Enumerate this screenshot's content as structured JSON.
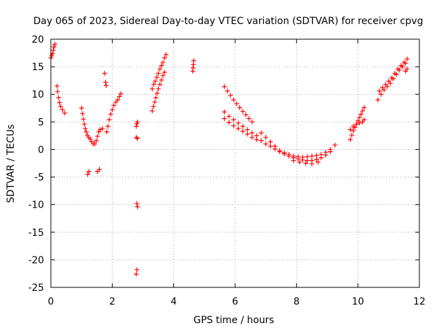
{
  "chart_data": {
    "type": "scatter",
    "title": "Day 065 of 2023, Sidereal Day-to-day VTEC variation (SDTVAR) for receiver cpvg",
    "xlabel": "GPS time / hours",
    "ylabel": "SDTVAR / TECUs",
    "xlim": [
      0,
      12
    ],
    "ylim": [
      -25,
      20
    ],
    "xticks": [
      0,
      2,
      4,
      6,
      8,
      10,
      12
    ],
    "yticks": [
      -25,
      -20,
      -15,
      -10,
      -5,
      0,
      5,
      10,
      15,
      20
    ],
    "grid": true,
    "marker": "+",
    "color": "#ff0000",
    "series": [
      {
        "name": "SDTVAR",
        "points": [
          [
            0.0,
            16.6
          ],
          [
            0.03,
            17.0
          ],
          [
            0.05,
            17.4
          ],
          [
            0.08,
            18.0
          ],
          [
            0.1,
            18.6
          ],
          [
            0.13,
            19.1
          ],
          [
            0.2,
            11.5
          ],
          [
            0.22,
            10.5
          ],
          [
            0.25,
            9.4
          ],
          [
            0.28,
            8.5
          ],
          [
            0.32,
            7.8
          ],
          [
            0.38,
            7.2
          ],
          [
            0.45,
            6.6
          ],
          [
            1.0,
            7.5
          ],
          [
            1.03,
            6.5
          ],
          [
            1.06,
            5.5
          ],
          [
            1.09,
            4.6
          ],
          [
            1.12,
            3.8
          ],
          [
            1.15,
            3.2
          ],
          [
            1.19,
            2.6
          ],
          [
            1.23,
            2.2
          ],
          [
            1.28,
            1.9
          ],
          [
            1.33,
            1.4
          ],
          [
            1.38,
            1.0
          ],
          [
            1.43,
            1.0
          ],
          [
            1.48,
            1.6
          ],
          [
            1.52,
            2.4
          ],
          [
            1.56,
            3.2
          ],
          [
            1.6,
            3.6
          ],
          [
            1.68,
            3.8
          ],
          [
            1.2,
            -4.5
          ],
          [
            1.24,
            -4.0
          ],
          [
            1.52,
            -4.0
          ],
          [
            1.58,
            -3.6
          ],
          [
            1.75,
            13.8
          ],
          [
            1.78,
            12.2
          ],
          [
            1.8,
            11.6
          ],
          [
            1.82,
            3.2
          ],
          [
            1.86,
            4.2
          ],
          [
            1.9,
            5.4
          ],
          [
            1.95,
            6.4
          ],
          [
            2.0,
            7.2
          ],
          [
            2.05,
            8.0
          ],
          [
            2.12,
            8.6
          ],
          [
            2.18,
            9.0
          ],
          [
            2.23,
            9.6
          ],
          [
            2.28,
            10.1
          ],
          [
            2.78,
            4.2
          ],
          [
            2.8,
            4.7
          ],
          [
            2.82,
            5.0
          ],
          [
            2.78,
            2.2
          ],
          [
            2.82,
            2.0
          ],
          [
            2.8,
            -9.8
          ],
          [
            2.82,
            -10.4
          ],
          [
            2.8,
            -21.8
          ],
          [
            2.78,
            -22.6
          ],
          [
            3.3,
            7.0
          ],
          [
            3.34,
            7.8
          ],
          [
            3.38,
            8.6
          ],
          [
            3.42,
            9.4
          ],
          [
            3.46,
            10.2
          ],
          [
            3.5,
            11.0
          ],
          [
            3.55,
            11.8
          ],
          [
            3.6,
            12.6
          ],
          [
            3.65,
            13.4
          ],
          [
            3.7,
            14.0
          ],
          [
            3.3,
            11.0
          ],
          [
            3.35,
            11.8
          ],
          [
            3.4,
            12.4
          ],
          [
            3.45,
            13.1
          ],
          [
            3.5,
            13.8
          ],
          [
            3.55,
            14.6
          ],
          [
            3.6,
            15.2
          ],
          [
            3.65,
            15.8
          ],
          [
            3.7,
            16.6
          ],
          [
            3.75,
            17.2
          ],
          [
            4.62,
            14.2
          ],
          [
            4.63,
            14.8
          ],
          [
            4.64,
            15.4
          ],
          [
            4.65,
            16.1
          ],
          [
            5.65,
            11.4
          ],
          [
            5.75,
            10.6
          ],
          [
            5.85,
            9.8
          ],
          [
            5.95,
            9.0
          ],
          [
            6.05,
            8.3
          ],
          [
            6.15,
            7.6
          ],
          [
            6.25,
            6.9
          ],
          [
            6.35,
            6.3
          ],
          [
            6.45,
            5.6
          ],
          [
            6.55,
            5.0
          ],
          [
            5.65,
            6.8
          ],
          [
            5.8,
            6.0
          ],
          [
            5.95,
            5.4
          ],
          [
            6.1,
            4.8
          ],
          [
            6.25,
            4.2
          ],
          [
            6.4,
            3.6
          ],
          [
            6.55,
            3.0
          ],
          [
            6.7,
            2.5
          ],
          [
            5.65,
            5.6
          ],
          [
            5.8,
            4.9
          ],
          [
            5.95,
            4.3
          ],
          [
            6.1,
            3.8
          ],
          [
            6.25,
            3.3
          ],
          [
            6.4,
            2.8
          ],
          [
            6.55,
            2.2
          ],
          [
            6.7,
            1.8
          ],
          [
            6.85,
            1.6
          ],
          [
            7.0,
            1.0
          ],
          [
            7.15,
            0.6
          ],
          [
            7.3,
            0.1
          ],
          [
            7.45,
            -0.4
          ],
          [
            7.6,
            -0.8
          ],
          [
            7.75,
            -1.2
          ],
          [
            7.9,
            -1.5
          ],
          [
            8.05,
            -1.7
          ],
          [
            8.2,
            -1.9
          ],
          [
            8.35,
            -2.0
          ],
          [
            8.5,
            -2.0
          ],
          [
            8.65,
            -1.8
          ],
          [
            8.8,
            -1.5
          ],
          [
            8.95,
            -1.0
          ],
          [
            9.1,
            -0.4
          ],
          [
            9.25,
            0.8
          ],
          [
            6.85,
            3.0
          ],
          [
            7.0,
            2.2
          ],
          [
            7.15,
            1.4
          ],
          [
            7.3,
            0.6
          ],
          [
            7.45,
            -0.2
          ],
          [
            7.6,
            -0.6
          ],
          [
            7.75,
            -0.9
          ],
          [
            7.9,
            -1.2
          ],
          [
            8.05,
            -1.3
          ],
          [
            8.2,
            -1.4
          ],
          [
            8.35,
            -1.3
          ],
          [
            8.5,
            -1.2
          ],
          [
            8.65,
            -1.1
          ],
          [
            8.8,
            -0.9
          ],
          [
            8.95,
            -0.5
          ],
          [
            9.1,
            0.0
          ],
          [
            7.9,
            -2.0
          ],
          [
            8.1,
            -2.3
          ],
          [
            8.3,
            -2.5
          ],
          [
            8.5,
            -2.6
          ],
          [
            8.7,
            -2.3
          ],
          [
            9.75,
            1.8
          ],
          [
            9.8,
            2.6
          ],
          [
            9.85,
            3.4
          ],
          [
            9.9,
            4.0
          ],
          [
            9.95,
            4.6
          ],
          [
            10.0,
            5.2
          ],
          [
            10.05,
            5.8
          ],
          [
            10.1,
            6.4
          ],
          [
            10.15,
            7.0
          ],
          [
            10.2,
            7.6
          ],
          [
            9.75,
            3.6
          ],
          [
            9.85,
            4.2
          ],
          [
            9.95,
            4.6
          ],
          [
            10.05,
            4.8
          ],
          [
            10.15,
            5.0
          ],
          [
            10.2,
            5.4
          ],
          [
            10.65,
            9.0
          ],
          [
            10.75,
            10.0
          ],
          [
            10.85,
            10.8
          ],
          [
            10.95,
            11.4
          ],
          [
            11.05,
            12.0
          ],
          [
            11.15,
            12.8
          ],
          [
            11.25,
            13.6
          ],
          [
            11.35,
            14.4
          ],
          [
            11.45,
            15.0
          ],
          [
            11.55,
            15.6
          ],
          [
            10.7,
            10.6
          ],
          [
            10.8,
            11.2
          ],
          [
            10.9,
            11.8
          ],
          [
            11.0,
            12.4
          ],
          [
            11.1,
            13.0
          ],
          [
            11.2,
            13.8
          ],
          [
            11.3,
            14.6
          ],
          [
            11.4,
            15.2
          ],
          [
            11.5,
            15.8
          ],
          [
            11.6,
            16.4
          ],
          [
            11.55,
            14.2
          ],
          [
            11.6,
            14.6
          ]
        ]
      }
    ]
  }
}
